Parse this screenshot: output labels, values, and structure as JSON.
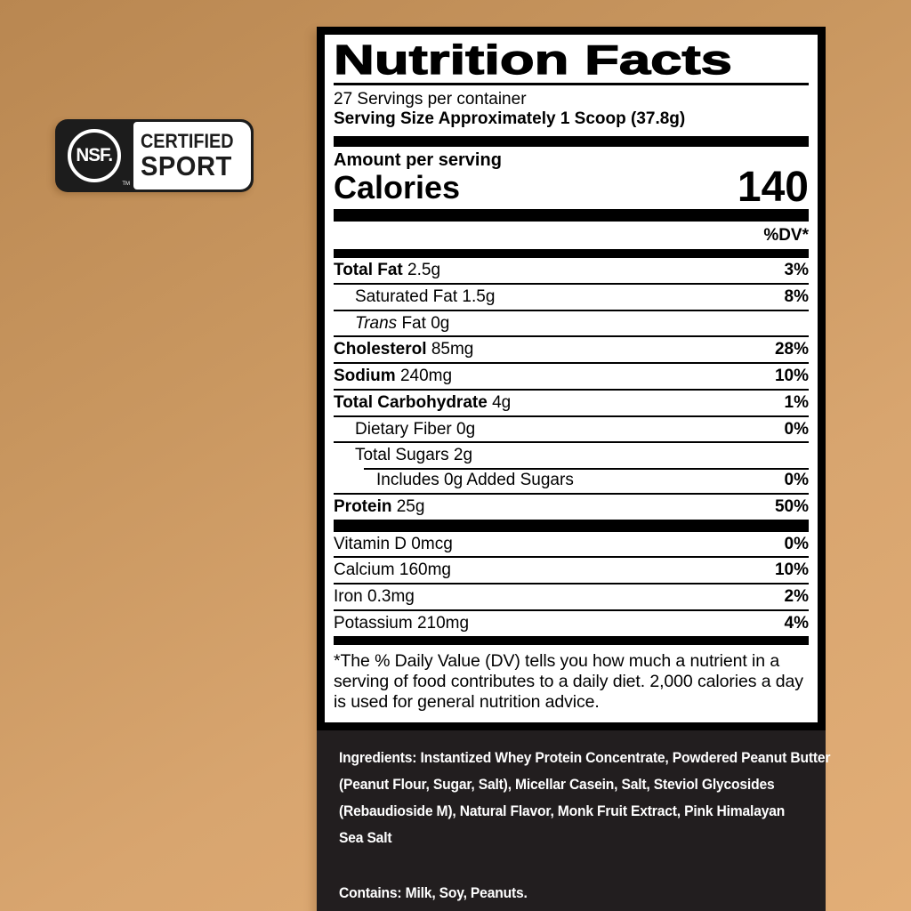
{
  "colors": {
    "background_top": "#b98751",
    "background_bottom": "#e2ae77",
    "panel_bg": "#ffffff",
    "panel_border": "#000000",
    "ingredients_bg": "#221e1f",
    "badge_bg": "#1c1c1c"
  },
  "badge": {
    "nsf": "NSF.",
    "tm": "TM",
    "line1": "CERTIFIED",
    "line2": "SPORT"
  },
  "panel": {
    "title": "Nutrition Facts",
    "servings_per_container": "27 Servings per container",
    "serving_size": "Serving Size Approximately 1 Scoop (37.8g)",
    "amount_per_serving": "Amount per serving",
    "calories_label": "Calories",
    "calories_value": "140",
    "dv_header": "%DV*",
    "rows": [
      {
        "name": "Total Fat",
        "amount": "2.5g",
        "dv": "3%"
      },
      {
        "name": "Saturated Fat",
        "amount": "1.5g",
        "dv": "8%"
      },
      {
        "name_italic": "Trans",
        "name": "Fat",
        "amount": "0g",
        "dv": ""
      },
      {
        "name": "Cholesterol",
        "amount": "85mg",
        "dv": "28%"
      },
      {
        "name": "Sodium",
        "amount": "240mg",
        "dv": "10%"
      },
      {
        "name": "Total Carbohydrate",
        "amount": "4g",
        "dv": "1%"
      },
      {
        "name": "Dietary Fiber",
        "amount": "0g",
        "dv": "0%"
      },
      {
        "name": "Total Sugars",
        "amount": "2g",
        "dv": ""
      },
      {
        "name": "Includes 0g Added Sugars",
        "amount": "",
        "dv": "0%"
      },
      {
        "name": "Protein",
        "amount": "25g",
        "dv": "50%"
      }
    ],
    "micronutrients": [
      {
        "name": "Vitamin D",
        "amount": "0mcg",
        "dv": "0%"
      },
      {
        "name": "Calcium",
        "amount": "160mg",
        "dv": "10%"
      },
      {
        "name": "Iron",
        "amount": "0.3mg",
        "dv": "2%"
      },
      {
        "name": "Potassium",
        "amount": "210mg",
        "dv": "4%"
      }
    ],
    "footnote": "*The % Daily Value (DV) tells you how much a nutrient in a serving of food contributes to a daily diet. 2,000 calories a day is used for general nutrition advice."
  },
  "ingredients": {
    "label": "Ingredients:",
    "line1": "Instantized Whey Protein Concentrate, Powdered Peanut Butter",
    "line2": "(Peanut Flour, Sugar, Salt), Micellar Casein, Salt, Steviol Glycosides",
    "line3": "(Rebaudioside M), Natural Flavor, Monk Fruit Extract, Pink Himalayan",
    "line4": "Sea Salt",
    "contains_label": "Contains:",
    "contains_text": "Milk, Soy, Peanuts."
  }
}
